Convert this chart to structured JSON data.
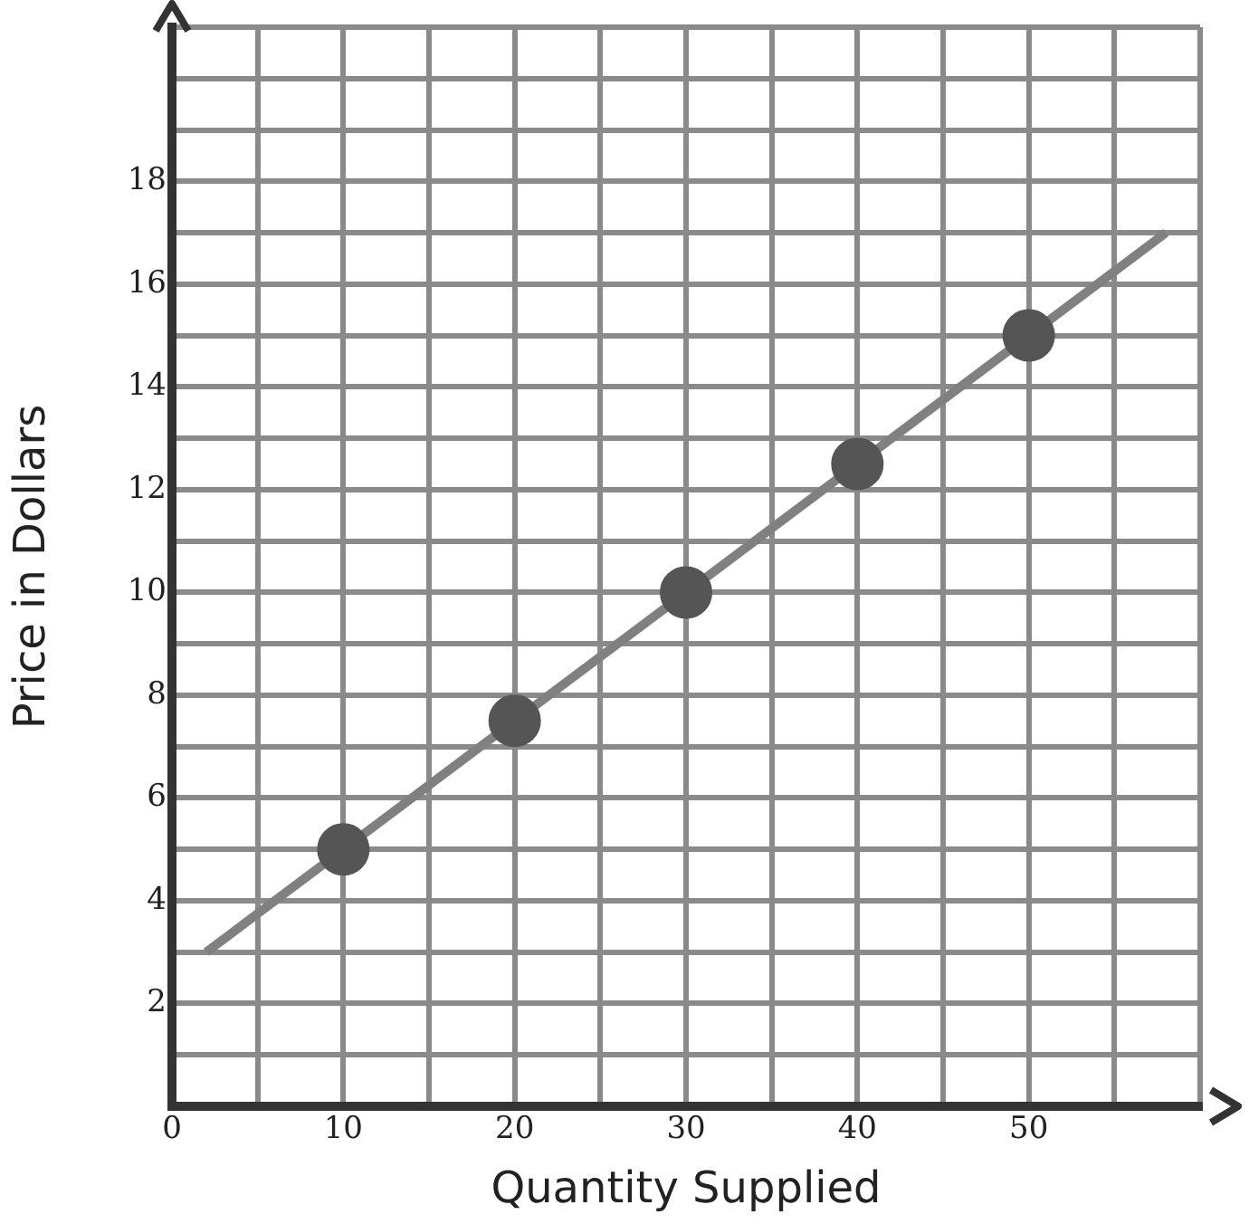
{
  "chart_data": {
    "type": "scatter",
    "xlabel": "Quantity Supplied",
    "ylabel": "Price in Dollars",
    "xlim": [
      0,
      60
    ],
    "ylim": [
      0,
      21
    ],
    "xticks": [
      0,
      {
        "value": 5,
        "label": null
      },
      10,
      {
        "value": 15,
        "label": null
      },
      20,
      {
        "value": 25,
        "label": null
      },
      30,
      {
        "value": 35,
        "label": null
      },
      40,
      {
        "value": 45,
        "label": null
      },
      50,
      {
        "value": 55,
        "label": null
      },
      {
        "value": 60,
        "label": null
      }
    ],
    "yticks": [
      {
        "value": 0,
        "label": null
      },
      {
        "value": 1,
        "label": null
      },
      2,
      {
        "value": 3,
        "label": null
      },
      4,
      {
        "value": 5,
        "label": null
      },
      6,
      {
        "value": 7,
        "label": null
      },
      8,
      {
        "value": 9,
        "label": null
      },
      10,
      {
        "value": 11,
        "label": null
      },
      12,
      {
        "value": 13,
        "label": null
      },
      14,
      {
        "value": 15,
        "label": null
      },
      16,
      {
        "value": 17,
        "label": null
      },
      18,
      {
        "value": 19,
        "label": null
      },
      {
        "value": 20,
        "label": null
      },
      {
        "value": 21,
        "label": null
      }
    ],
    "grid": true,
    "legend": false,
    "marker": "circle",
    "series": [
      {
        "color": "#555555",
        "x": [
          10,
          20,
          30,
          40,
          50
        ],
        "values": [
          5,
          7.5,
          10,
          12.5,
          15
        ]
      },
      {
        "type": "line",
        "color": "#808080",
        "x": [
          2,
          58
        ],
        "values": [
          3,
          17
        ],
        "marker": "none",
        "line_style": "solid"
      }
    ]
  }
}
